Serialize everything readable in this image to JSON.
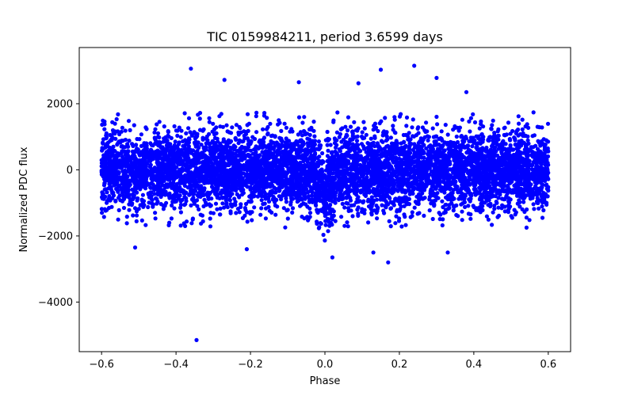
{
  "chart_data": {
    "type": "scatter",
    "title": "TIC 0159984211, period 3.6599 days",
    "xlabel": "Phase",
    "ylabel": "Normalized PDC flux",
    "xlim": [
      -0.66,
      0.66
    ],
    "ylim": [
      -5500,
      3700
    ],
    "xticks": [
      -0.6,
      -0.4,
      -0.2,
      0.0,
      0.2,
      0.4,
      0.6
    ],
    "xtick_labels": [
      "−0.6",
      "−0.4",
      "−0.2",
      "0.0",
      "0.2",
      "0.4",
      "0.6"
    ],
    "yticks": [
      -4000,
      -2000,
      0,
      2000
    ],
    "ytick_labels": [
      "−4000",
      "−2000",
      "0",
      "2000"
    ],
    "marker_color": "#0000ff",
    "grid": false,
    "series": [
      {
        "name": "PDC flux",
        "phase_range": [
          -0.6,
          0.6
        ],
        "baseline_flux": 0,
        "scatter_std": 600,
        "point_count": 6500,
        "transit_center_phase": 0.0,
        "transit_half_width": 0.03,
        "transit_depth": 600,
        "outliers": [
          {
            "x": -0.345,
            "y": -5150
          },
          {
            "x": -0.36,
            "y": 3060
          },
          {
            "x": 0.24,
            "y": 3150
          },
          {
            "x": 0.15,
            "y": 3030
          },
          {
            "x": 0.3,
            "y": 2780
          },
          {
            "x": -0.27,
            "y": 2720
          },
          {
            "x": 0.17,
            "y": -2800
          },
          {
            "x": 0.02,
            "y": -2650
          },
          {
            "x": 0.13,
            "y": -2500
          },
          {
            "x": 0.33,
            "y": -2500
          },
          {
            "x": -0.21,
            "y": -2400
          },
          {
            "x": -0.51,
            "y": -2350
          },
          {
            "x": 0.09,
            "y": 2620
          },
          {
            "x": -0.07,
            "y": 2650
          },
          {
            "x": 0.38,
            "y": 2350
          }
        ]
      }
    ]
  }
}
